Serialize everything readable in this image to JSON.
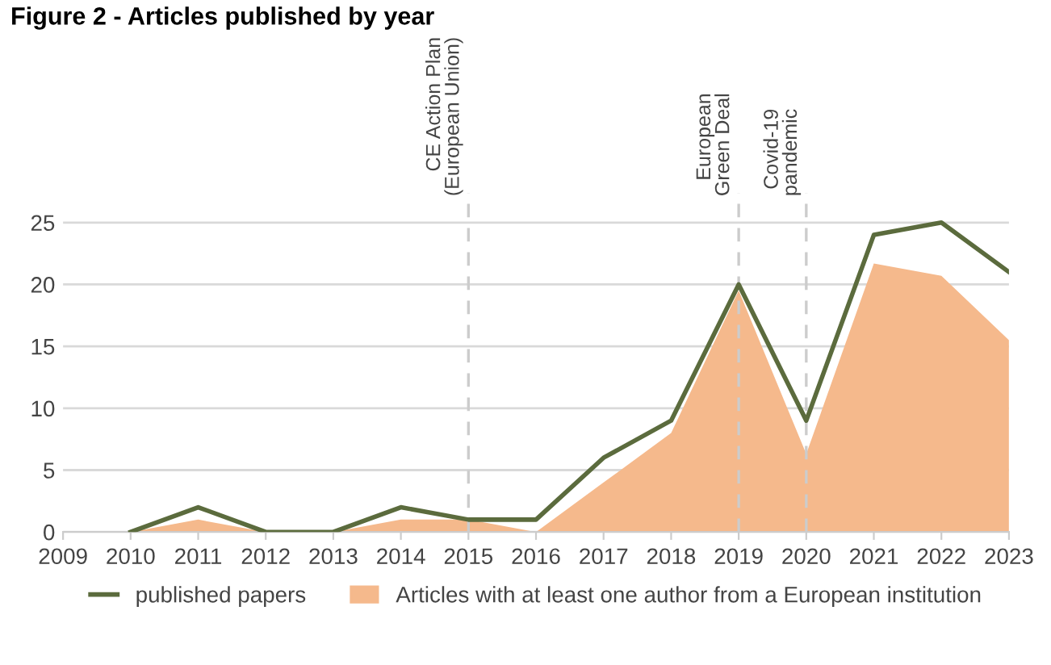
{
  "chart_data": {
    "type": "line",
    "title": "Figure 2 - Articles published by year",
    "x": [
      2010,
      2011,
      2012,
      2013,
      2014,
      2015,
      2016,
      2017,
      2018,
      2019,
      2020,
      2021,
      2022,
      2023
    ],
    "series": [
      {
        "name": "published papers",
        "color": "#5b6b3d",
        "values": [
          0,
          2,
          0,
          0,
          2,
          1,
          1,
          6,
          9,
          20,
          9,
          24,
          25,
          21
        ]
      },
      {
        "name": "Articles with at least one author from a European institution",
        "type": "area",
        "color": "#f5b98c",
        "values": [
          0,
          1,
          0,
          0,
          1,
          1,
          0,
          4,
          8,
          19.5,
          6.3,
          21.7,
          20.7,
          15.5
        ]
      }
    ],
    "xlim": [
      2009,
      2023
    ],
    "xticks": [
      2009,
      2010,
      2011,
      2012,
      2013,
      2014,
      2015,
      2016,
      2017,
      2018,
      2019,
      2020,
      2021,
      2022,
      2023
    ],
    "ylim": [
      0,
      27.4
    ],
    "yticks": [
      0,
      5,
      10,
      15,
      20,
      25
    ],
    "grid": "y",
    "legend": "bottom",
    "ref_lines": [
      {
        "axis": "x",
        "value": 2015,
        "label": "CE Action Plan\n(European Union)",
        "color": "#cccccc",
        "line_style": "dashed"
      },
      {
        "axis": "x",
        "value": 2019,
        "label": "European\nGreen Deal",
        "color": "#cccccc",
        "line_style": "dashed"
      },
      {
        "axis": "x",
        "value": 2020,
        "label": "Covid-19\npandemic",
        "color": "#cccccc",
        "line_style": "dashed"
      }
    ]
  }
}
